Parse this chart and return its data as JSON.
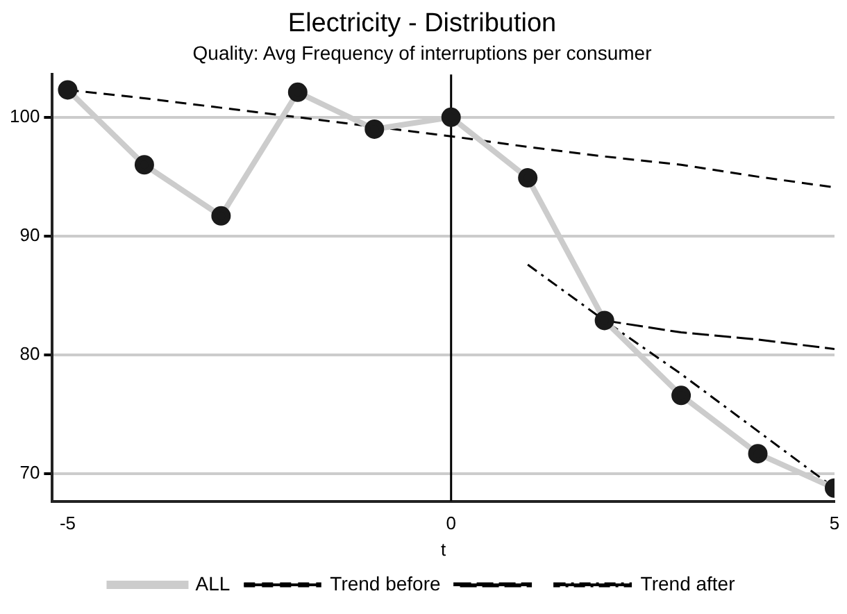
{
  "chart_data": {
    "type": "line",
    "title": "Electricity - Distribution",
    "subtitle": "Quality: Avg Frequency of interruptions per consumer",
    "xlabel": "t",
    "xlim": [
      -5.2,
      5
    ],
    "xticks": [
      -5,
      0,
      5
    ],
    "ylim": [
      67.7,
      103.6
    ],
    "yticks": [
      70,
      80,
      90,
      100
    ],
    "grid": "y",
    "legend": "bottom",
    "ref_lines": [
      {
        "axis": "x",
        "value": 0,
        "color": "#000000"
      }
    ],
    "series": [
      {
        "name": "ALL",
        "color": "#cccccc",
        "marker": "circle",
        "line_style": "solid",
        "x": [
          -5,
          -4,
          -3,
          -2,
          -1,
          0,
          1,
          2,
          3,
          4,
          5
        ],
        "values": [
          102.3,
          96.0,
          91.7,
          102.1,
          99.0,
          100.0,
          94.9,
          82.9,
          76.6,
          71.7,
          68.8
        ]
      },
      {
        "name": "Trend before",
        "color": "#000000",
        "marker": "none",
        "line_style": "dashed",
        "x": [
          -5,
          -4,
          -3,
          -2,
          -1,
          0,
          1,
          2,
          3,
          4,
          5
        ],
        "values": [
          102.3,
          101.6,
          100.8,
          100.0,
          99.2,
          98.4,
          97.5,
          96.7,
          96.0,
          95.0,
          94.1
        ]
      },
      {
        "color": "#000000",
        "marker": "none",
        "line_style": "longdash",
        "x": [
          2,
          3,
          4,
          5
        ],
        "values": [
          82.9,
          81.9,
          81.3,
          80.5
        ]
      },
      {
        "name": "Trend after",
        "color": "#000000",
        "marker": "none",
        "line_style": "dashdot",
        "x": [
          1,
          2,
          3,
          4,
          5
        ],
        "values": [
          87.6,
          82.9,
          78.4,
          73.6,
          68.8
        ]
      }
    ]
  }
}
